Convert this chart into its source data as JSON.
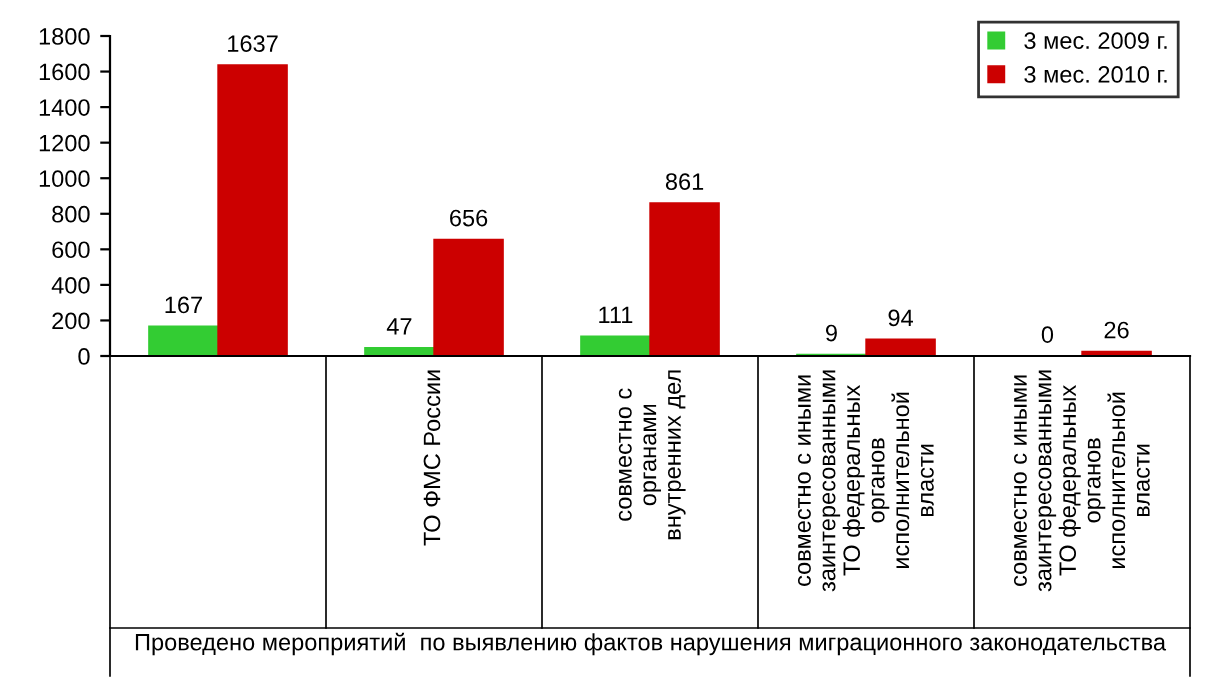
{
  "chart_data": {
    "type": "bar",
    "categories": [
      null,
      "ТО ФМС России",
      "совместно с\nорганами\nвнутренних дел",
      "совместно с иными\nзаинтересованными\nТО федеральных\nорганов\nисполнительной\nвласти",
      "совместно с иными\nзаинтересованными\nТО федеральных\nорганов\nисполнительной\nвласти"
    ],
    "series": [
      {
        "name": "3 мес. 2009 г.",
        "color": "#33cc33",
        "values": [
          167,
          47,
          111,
          9,
          0
        ]
      },
      {
        "name": "3 мес. 2010 г.",
        "color": "#cc0000",
        "values": [
          1637,
          656,
          861,
          94,
          26
        ]
      }
    ],
    "xlabel": "Проведено мероприятий  по выявлению фактов нарушения миграционного законодательства",
    "ylim": [
      0,
      1800
    ],
    "yticks": [
      0,
      200,
      400,
      600,
      800,
      1000,
      1200,
      1400,
      1600,
      1800
    ],
    "data_labels": true,
    "legend": "top right",
    "grid": false
  }
}
